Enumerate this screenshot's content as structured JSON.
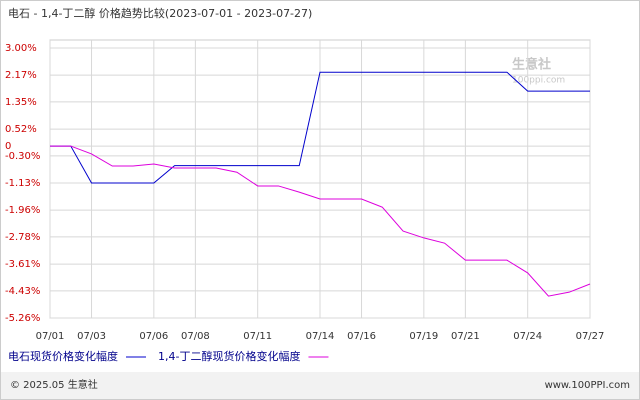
{
  "chart_data": {
    "type": "line",
    "title": "电石 - 1,4-丁二醇 价格趋势比较(2023-07-01 - 2023-07-27)",
    "categories": [
      "07/01",
      null,
      "07/03",
      null,
      null,
      "07/06",
      null,
      "07/08",
      null,
      null,
      "07/11",
      null,
      null,
      "07/14",
      null,
      "07/16",
      null,
      null,
      "07/19",
      null,
      "07/21",
      null,
      null,
      "07/24",
      null,
      null,
      "07/27"
    ],
    "series": [
      {
        "name": "电石现货价格变化幅度",
        "color": "#0000cc",
        "values": [
          0,
          0,
          -1.13,
          -1.13,
          -1.13,
          -1.13,
          -0.6,
          -0.6,
          -0.6,
          -0.6,
          -0.6,
          -0.6,
          -0.6,
          2.26,
          2.26,
          2.26,
          2.26,
          2.26,
          2.26,
          2.26,
          2.26,
          2.26,
          2.26,
          1.68,
          1.68,
          1.68,
          1.68
        ]
      },
      {
        "name": "1,4-丁二醇现货价格变化幅度",
        "color": "#dd00dd",
        "values": [
          0,
          0,
          -0.24,
          -0.61,
          -0.61,
          -0.55,
          -0.67,
          -0.67,
          -0.67,
          -0.8,
          -1.22,
          -1.22,
          -1.41,
          -1.62,
          -1.62,
          -1.62,
          -1.87,
          -2.6,
          -2.81,
          -2.97,
          -3.49,
          -3.49,
          -3.49,
          -3.88,
          -4.59,
          -4.47,
          -4.22
        ]
      }
    ],
    "ylim": [
      -5.26,
      3.0
    ],
    "yticks": [
      {
        "value": 3.0,
        "label": "3.00%"
      },
      {
        "value": 2.17,
        "label": "2.17%"
      },
      {
        "value": 1.35,
        "label": "1.35%"
      },
      {
        "value": 0.52,
        "label": "0.52%"
      },
      0,
      {
        "value": -0.3,
        "label": "-0.30%"
      },
      {
        "value": -1.13,
        "label": "-1.13%"
      },
      {
        "value": -1.96,
        "label": "-1.96%"
      },
      {
        "value": -2.78,
        "label": "-2.78%"
      },
      {
        "value": -3.61,
        "label": "-3.61%"
      },
      {
        "value": -4.43,
        "label": "-4.43%"
      },
      {
        "value": -5.26,
        "label": "-5.26%"
      }
    ],
    "grid": true,
    "watermark": {
      "name": "生意社",
      "site": "100ppi.com"
    },
    "footer": {
      "left": "© 2025.05 生意社",
      "right": "www.100PPI.com"
    }
  }
}
